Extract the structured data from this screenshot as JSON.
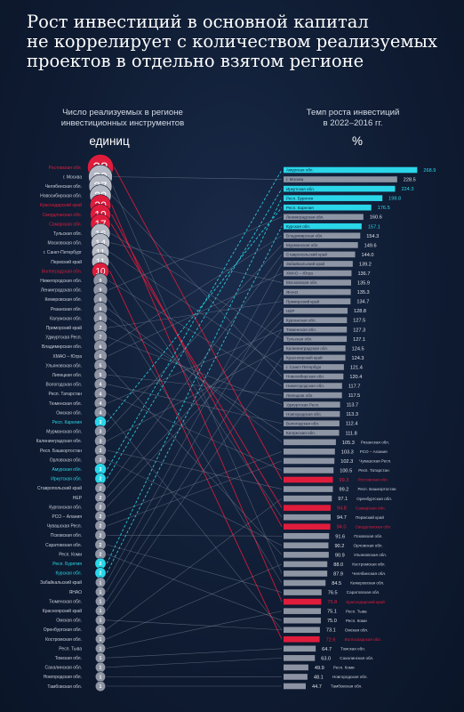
{
  "title": {
    "line1": "Рост инвестиций в основной капитал",
    "line2": "не коррелирует с количеством реализуемых",
    "line3": "проектов в отдельно взятом регионе"
  },
  "left_header": {
    "line1": "Число реализуемых в регионе",
    "line2": "инвестиционных инструментов",
    "unit": "единиц"
  },
  "right_header": {
    "line1": "Темп роста инвестиций",
    "line2": "в 2022–2016 гг.",
    "unit": "%"
  },
  "colors": {
    "background": "#0f1c33",
    "red": "#e01c3c",
    "cyan": "#2ad6e8",
    "gray": "#9aa1b0",
    "line": "#8a93a6"
  },
  "chart_data": {
    "type": "slope",
    "left": {
      "title": "Число реализуемых в регионе инвестиционных инструментов",
      "unit": "единиц",
      "items": [
        {
          "region": "Ростовская обл.",
          "value": 38,
          "highlight": "red"
        },
        {
          "region": "г. Москва",
          "value": 30
        },
        {
          "region": "Челябинская обл.",
          "value": 27
        },
        {
          "region": "Новосибирская обл.",
          "value": 22
        },
        {
          "region": "Краснодарский край",
          "value": 20,
          "highlight": "red"
        },
        {
          "region": "Свердловская обл.",
          "value": 19,
          "highlight": "red"
        },
        {
          "region": "Самарская обл.",
          "value": 17,
          "highlight": "red"
        },
        {
          "region": "Тульская обл.",
          "value": 16
        },
        {
          "region": "Московская обл.",
          "value": 14
        },
        {
          "region": "г. Санкт-Петербург",
          "value": 11
        },
        {
          "region": "Пермский край",
          "value": 11
        },
        {
          "region": "Волгоградская обл.",
          "value": 10,
          "highlight": "red"
        },
        {
          "region": "Нижегородская обл.",
          "value": 9
        },
        {
          "region": "Ленинградская обл.",
          "value": 9
        },
        {
          "region": "Кемеровская обл.",
          "value": 8
        },
        {
          "region": "Рязанская обл.",
          "value": 8
        },
        {
          "region": "Калужская обл.",
          "value": 8
        },
        {
          "region": "Приморский край",
          "value": 7
        },
        {
          "region": "Удмуртская Респ.",
          "value": 7
        },
        {
          "region": "Владимирская обл.",
          "value": 6
        },
        {
          "region": "ХМАО – Югра",
          "value": 6
        },
        {
          "region": "Ульяновская обл.",
          "value": 5
        },
        {
          "region": "Липецкая обл.",
          "value": 5
        },
        {
          "region": "Вологодская обл.",
          "value": 4
        },
        {
          "region": "Респ. Татарстан",
          "value": 4
        },
        {
          "region": "Тюменская обл.",
          "value": 4
        },
        {
          "region": "Омская обл.",
          "value": 4
        },
        {
          "region": "Респ. Карелия",
          "value": 3,
          "highlight": "cyan"
        },
        {
          "region": "Мурманская обл.",
          "value": 3
        },
        {
          "region": "Калининградская обл.",
          "value": 3
        },
        {
          "region": "Респ. Башкортостан",
          "value": 3
        },
        {
          "region": "Орловская обл.",
          "value": 3
        },
        {
          "region": "Амурская обл.",
          "value": 3,
          "highlight": "cyan"
        },
        {
          "region": "Иркутская обл.",
          "value": 2,
          "highlight": "cyan"
        },
        {
          "region": "Ставропольский край",
          "value": 2
        },
        {
          "region": "НЕР",
          "value": 2
        },
        {
          "region": "Курганская обл.",
          "value": 2
        },
        {
          "region": "РСО – Алания",
          "value": 2
        },
        {
          "region": "Чувашская Респ.",
          "value": 2
        },
        {
          "region": "Псковская обл.",
          "value": 2
        },
        {
          "region": "Саратовская обл.",
          "value": 2
        },
        {
          "region": "Респ. Коми",
          "value": 2
        },
        {
          "region": "Респ. Бурятия",
          "value": 2,
          "highlight": "cyan"
        },
        {
          "region": "Курская обл.",
          "value": 2,
          "highlight": "cyan"
        },
        {
          "region": "Забайкальский край",
          "value": 1
        },
        {
          "region": "ЯНАО",
          "value": 1
        },
        {
          "region": "Тюменская обл.",
          "value": 1
        },
        {
          "region": "Красноярский край",
          "value": 1
        },
        {
          "region": "Омская обл.",
          "value": 1
        },
        {
          "region": "Оренбургская обл.",
          "value": 1
        },
        {
          "region": "Костромская обл.",
          "value": 1
        },
        {
          "region": "Респ. Тыва",
          "value": 1
        },
        {
          "region": "Томская обл.",
          "value": 1
        },
        {
          "region": "Сахалинская обл.",
          "value": 1
        },
        {
          "region": "Новгородская обл.",
          "value": 1
        },
        {
          "region": "Тамбовская обл.",
          "value": 1
        }
      ]
    },
    "right": {
      "title": "Темп роста инвестиций в 2022–2016 гг.",
      "unit": "%",
      "axis_max": 270,
      "items": [
        {
          "region": "Амурская обл.",
          "value": 268.9,
          "highlight": "cyan"
        },
        {
          "region": "г. Москва",
          "value": 228.5
        },
        {
          "region": "Иркутская обл.",
          "value": 224.3,
          "highlight": "cyan"
        },
        {
          "region": "Респ. Бурятия",
          "value": 198.8,
          "highlight": "cyan"
        },
        {
          "region": "Респ. Карелия",
          "value": 176.5,
          "highlight": "cyan"
        },
        {
          "region": "Ленинградская обл.",
          "value": 160.6
        },
        {
          "region": "Курская обл.",
          "value": 157.1,
          "highlight": "cyan"
        },
        {
          "region": "Владимирская обл.",
          "value": 154.3
        },
        {
          "region": "Мурманская обл.",
          "value": 149.6
        },
        {
          "region": "Ставропольский край",
          "value": 144.0
        },
        {
          "region": "Забайкальский край",
          "value": 139.2
        },
        {
          "region": "ХМАО – Югра",
          "value": 136.7
        },
        {
          "region": "Московская обл.",
          "value": 135.9
        },
        {
          "region": "ЯНАО",
          "value": 135.3
        },
        {
          "region": "Приморский край",
          "value": 134.7
        },
        {
          "region": "НЕР",
          "value": 128.8
        },
        {
          "region": "Курганская обл.",
          "value": 127.5
        },
        {
          "region": "Тюменская обл.",
          "value": 127.3
        },
        {
          "region": "Тульская обл.",
          "value": 127.1
        },
        {
          "region": "Калининградская обл.",
          "value": 124.5
        },
        {
          "region": "Красноярский край",
          "value": 124.3
        },
        {
          "region": "г. Санкт-Петербург",
          "value": 121.4
        },
        {
          "region": "Новосибирская обл.",
          "value": 120.4
        },
        {
          "region": "Нижегородская обл.",
          "value": 117.7
        },
        {
          "region": "Липецкая обл.",
          "value": 117.5
        },
        {
          "region": "Удмуртская Респ.",
          "value": 113.7
        },
        {
          "region": "Новгородская обл.",
          "value": 113.3
        },
        {
          "region": "Вологодская обл.",
          "value": 112.4
        },
        {
          "region": "Калужская обл.",
          "value": 111.8
        },
        {
          "region": "Рязанская обл.",
          "value": 105.3
        },
        {
          "region": "РСО – Алания",
          "value": 103.3
        },
        {
          "region": "Чувашская Респ.",
          "value": 102.3
        },
        {
          "region": "Респ. Татарстан",
          "value": 100.5
        },
        {
          "region": "Ростовская обл.",
          "value": 99.3,
          "highlight": "red"
        },
        {
          "region": "Респ. Башкортостан",
          "value": 99.2
        },
        {
          "region": "Оренбургская обл.",
          "value": 97.1
        },
        {
          "region": "Самарская обл.",
          "value": 94.8,
          "highlight": "red"
        },
        {
          "region": "Пермский край",
          "value": 94.7
        },
        {
          "region": "Свердловская обл.",
          "value": 94.0,
          "highlight": "red"
        },
        {
          "region": "Псковская обл.",
          "value": 91.6
        },
        {
          "region": "Орловская обл.",
          "value": 90.2
        },
        {
          "region": "Ульяновская обл.",
          "value": 90.9
        },
        {
          "region": "Костромская обл.",
          "value": 88.0
        },
        {
          "region": "Челябинская обл.",
          "value": 87.9
        },
        {
          "region": "Кемеровская обл.",
          "value": 84.5
        },
        {
          "region": "Саратовская обл.",
          "value": 76.5
        },
        {
          "region": "Краснодарский край",
          "value": 75.8,
          "highlight": "red"
        },
        {
          "region": "Респ. Тыва",
          "value": 75.1
        },
        {
          "region": "Респ. Коми",
          "value": 75.0
        },
        {
          "region": "Омская обл.",
          "value": 73.1
        },
        {
          "region": "Волгоградская обл.",
          "value": 72.6,
          "highlight": "red"
        },
        {
          "region": "Томская обл.",
          "value": 64.7
        },
        {
          "region": "Сахалинская обл.",
          "value": 63.0
        },
        {
          "region": "Респ. Коми",
          "value": 49.9
        },
        {
          "region": "Новгородская обл.",
          "value": 48.1
        },
        {
          "region": "Тамбовская обл.",
          "value": 44.7
        }
      ]
    },
    "connections": [
      [
        0,
        33
      ],
      [
        1,
        1
      ],
      [
        2,
        43
      ],
      [
        3,
        22
      ],
      [
        4,
        46
      ],
      [
        5,
        38
      ],
      [
        6,
        36
      ],
      [
        7,
        18
      ],
      [
        8,
        12
      ],
      [
        9,
        21
      ],
      [
        10,
        37
      ],
      [
        11,
        50
      ],
      [
        12,
        23
      ],
      [
        13,
        5
      ],
      [
        14,
        44
      ],
      [
        15,
        29
      ],
      [
        16,
        28
      ],
      [
        17,
        14
      ],
      [
        18,
        25
      ],
      [
        19,
        7
      ],
      [
        20,
        11
      ],
      [
        21,
        41
      ],
      [
        22,
        24
      ],
      [
        23,
        27
      ],
      [
        24,
        32
      ],
      [
        25,
        17
      ],
      [
        26,
        49
      ],
      [
        27,
        4
      ],
      [
        28,
        8
      ],
      [
        29,
        19
      ],
      [
        30,
        34
      ],
      [
        31,
        40
      ],
      [
        32,
        0
      ],
      [
        33,
        2
      ],
      [
        34,
        9
      ],
      [
        35,
        15
      ],
      [
        36,
        16
      ],
      [
        37,
        30
      ],
      [
        38,
        31
      ],
      [
        39,
        39
      ],
      [
        40,
        45
      ],
      [
        41,
        48
      ],
      [
        42,
        3
      ],
      [
        43,
        6
      ],
      [
        44,
        10
      ],
      [
        45,
        13
      ],
      [
        46,
        17
      ],
      [
        47,
        20
      ],
      [
        48,
        49
      ],
      [
        49,
        35
      ],
      [
        50,
        42
      ],
      [
        51,
        47
      ],
      [
        52,
        51
      ],
      [
        53,
        52
      ],
      [
        54,
        54
      ],
      [
        55,
        55
      ]
    ]
  }
}
